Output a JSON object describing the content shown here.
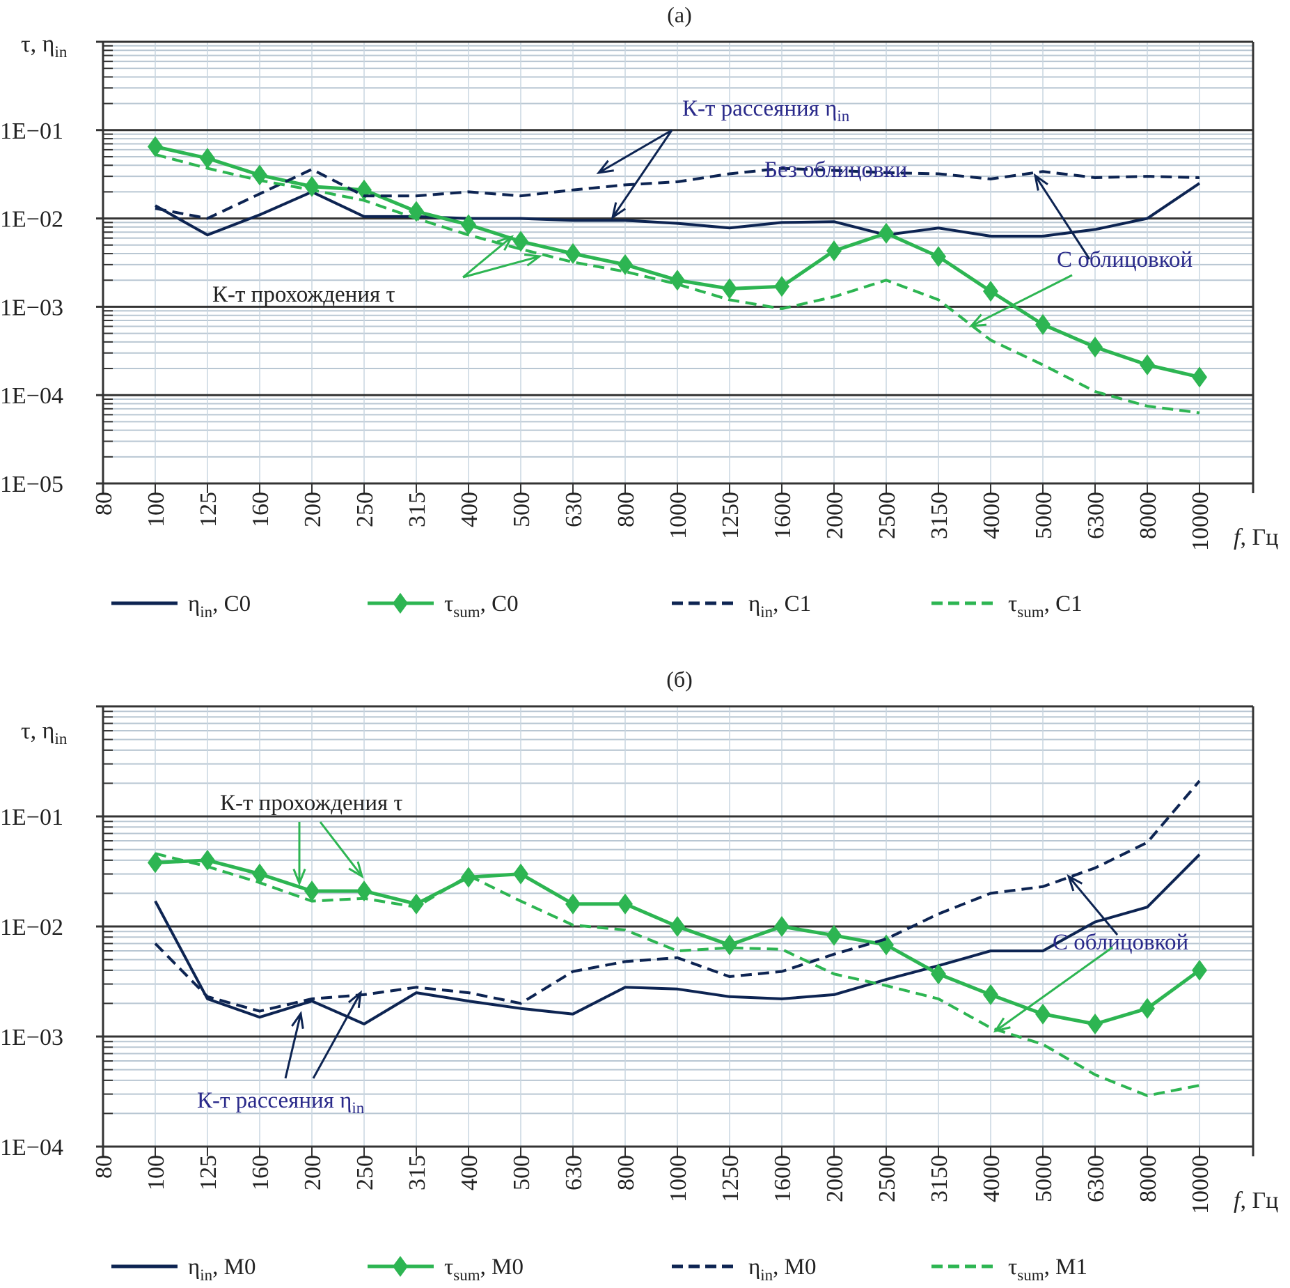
{
  "chart_data": [
    {
      "type": "line",
      "title": "(a)",
      "xlabel": "f, Гц",
      "ylabel": "τ, ηin",
      "yscale": "log",
      "ylim": [
        1e-05,
        1
      ],
      "yticks": [
        "1E−05",
        "1E−04",
        "1E−03",
        "1E−02",
        "1E−01"
      ],
      "ytick_values": [
        1e-05,
        0.0001,
        0.001,
        0.01,
        0.1
      ],
      "categories": [
        "80",
        "100",
        "125",
        "160",
        "200",
        "250",
        "315",
        "400",
        "500",
        "630",
        "800",
        "1000",
        "1250",
        "1600",
        "2000",
        "2500",
        "3150",
        "4000",
        "5000",
        "6300",
        "8000",
        "10000"
      ],
      "grid": true,
      "legend_position": "bottom",
      "series": [
        {
          "name": "ηin, C0",
          "label_main": "η",
          "label_sub": "in",
          "label_tail": ", C0",
          "style": "solid",
          "marker": "none",
          "color": "#0d2452",
          "values": [
            null,
            0.014,
            0.0065,
            0.011,
            0.02,
            0.0105,
            0.0105,
            0.01,
            0.01,
            0.0095,
            0.0095,
            0.0088,
            0.0078,
            0.009,
            0.0092,
            0.0065,
            0.0078,
            0.0063,
            0.0063,
            0.0075,
            0.01,
            0.025
          ]
        },
        {
          "name": "τsum, C0",
          "label_main": "τ",
          "label_sub": "sum",
          "label_tail": ", C0",
          "style": "solid",
          "marker": "diamond",
          "color": "#2db552",
          "values": [
            null,
            0.065,
            0.048,
            0.031,
            0.023,
            0.021,
            0.012,
            0.0085,
            0.0055,
            0.004,
            0.003,
            0.002,
            0.0016,
            0.0017,
            0.0043,
            0.0068,
            0.0037,
            0.0015,
            0.00063,
            0.00035,
            0.00022,
            0.00016
          ]
        },
        {
          "name": "ηin, C1",
          "label_main": "η",
          "label_sub": "in",
          "label_tail": ", C1",
          "style": "dashed",
          "marker": "none",
          "color": "#0d2452",
          "values": [
            null,
            0.013,
            0.01,
            0.019,
            0.036,
            0.018,
            0.018,
            0.02,
            0.018,
            0.021,
            0.024,
            0.026,
            0.032,
            0.037,
            0.035,
            0.033,
            0.032,
            0.028,
            0.034,
            0.029,
            0.03,
            0.029
          ]
        },
        {
          "name": "τsum, C1",
          "label_main": "τ",
          "label_sub": "sum",
          "label_tail": ", C1",
          "style": "dashed",
          "marker": "none",
          "color": "#2db552",
          "values": [
            null,
            0.053,
            0.037,
            0.027,
            0.021,
            0.016,
            0.01,
            0.0065,
            0.0045,
            0.0032,
            0.0025,
            0.0018,
            0.0012,
            0.00095,
            0.0013,
            0.002,
            0.0012,
            0.00042,
            0.00022,
            0.00011,
            7.5e-05,
            6.3e-05
          ]
        }
      ],
      "annotations": [
        {
          "id": "scatter-coef",
          "text_main": "К-т рассеяния η",
          "text_sub": "in",
          "color": "#2a2a8a"
        },
        {
          "id": "without-lining",
          "text": "Без облицовки",
          "color": "#2a2a8a"
        },
        {
          "id": "with-lining",
          "text": "С облицовкой",
          "color": "#2a2a8a"
        },
        {
          "id": "transmission-coef",
          "text": "К-т прохождения τ",
          "color": "#222222"
        }
      ]
    },
    {
      "type": "line",
      "title": "(б)",
      "xlabel": "f, Гц",
      "ylabel": "τ, ηin",
      "yscale": "log",
      "ylim": [
        0.0001,
        1
      ],
      "yticks": [
        "1E−04",
        "1E−03",
        "1E−02",
        "1E−01"
      ],
      "ytick_values": [
        0.0001,
        0.001,
        0.01,
        0.1
      ],
      "categories": [
        "80",
        "100",
        "125",
        "160",
        "200",
        "250",
        "315",
        "400",
        "500",
        "630",
        "800",
        "1000",
        "1250",
        "1600",
        "2000",
        "2500",
        "3150",
        "4000",
        "5000",
        "6300",
        "8000",
        "10000"
      ],
      "grid": true,
      "legend_position": "bottom",
      "series": [
        {
          "name": "ηin, M0",
          "label_main": "η",
          "label_sub": "in",
          "label_tail": ", M0",
          "style": "solid",
          "marker": "none",
          "color": "#0d2452",
          "values": [
            null,
            0.017,
            0.0022,
            0.0015,
            0.0021,
            0.0013,
            0.0025,
            0.0021,
            0.0018,
            0.0016,
            0.0028,
            0.0027,
            0.0023,
            0.0022,
            0.0024,
            0.0033,
            0.0044,
            0.006,
            0.006,
            0.011,
            0.015,
            0.045
          ]
        },
        {
          "name": "τsum, M0",
          "label_main": "τ",
          "label_sub": "sum",
          "label_tail": ", M0",
          "style": "solid",
          "marker": "diamond",
          "color": "#2db552",
          "values": [
            null,
            0.038,
            0.04,
            0.03,
            0.021,
            0.021,
            0.016,
            0.028,
            0.03,
            0.016,
            0.016,
            0.01,
            0.0068,
            0.01,
            0.0083,
            0.0068,
            0.0037,
            0.0024,
            0.0016,
            0.0013,
            0.0018,
            0.004
          ]
        },
        {
          "name": "ηin, M0 (dashed)",
          "label_main": "η",
          "label_sub": "in",
          "label_tail": ", M0",
          "style": "dashed",
          "marker": "none",
          "color": "#0d2452",
          "values": [
            null,
            0.007,
            0.0023,
            0.0017,
            0.0022,
            0.0024,
            0.0028,
            0.0025,
            0.002,
            0.0039,
            0.0048,
            0.0052,
            0.0035,
            0.0039,
            0.0056,
            0.0077,
            0.013,
            0.02,
            0.023,
            0.034,
            0.058,
            0.21
          ]
        },
        {
          "name": "τsum, M1",
          "label_main": "τ",
          "label_sub": "sum",
          "label_tail": ", M1",
          "style": "dashed",
          "marker": "none",
          "color": "#2db552",
          "values": [
            null,
            0.046,
            0.035,
            0.025,
            0.017,
            0.018,
            0.015,
            0.029,
            0.017,
            0.0103,
            0.0093,
            0.006,
            0.0064,
            0.0062,
            0.0037,
            0.0029,
            0.0022,
            0.0012,
            0.00085,
            0.00045,
            0.00029,
            0.00036
          ]
        }
      ],
      "annotations": [
        {
          "id": "transmission-coef",
          "text": "К-т прохождения τ",
          "color": "#222222"
        },
        {
          "id": "scatter-coef",
          "text_main": "К-т рассеяния η",
          "text_sub": "in",
          "color": "#2a2a8a"
        },
        {
          "id": "with-lining",
          "text": "С облицовкой",
          "color": "#2a2a8a"
        }
      ]
    }
  ],
  "labels": {
    "ylabel_main": "τ, η",
    "ylabel_sub": "in",
    "xlabel_f": "f",
    "xlabel_unit": ", Гц"
  }
}
